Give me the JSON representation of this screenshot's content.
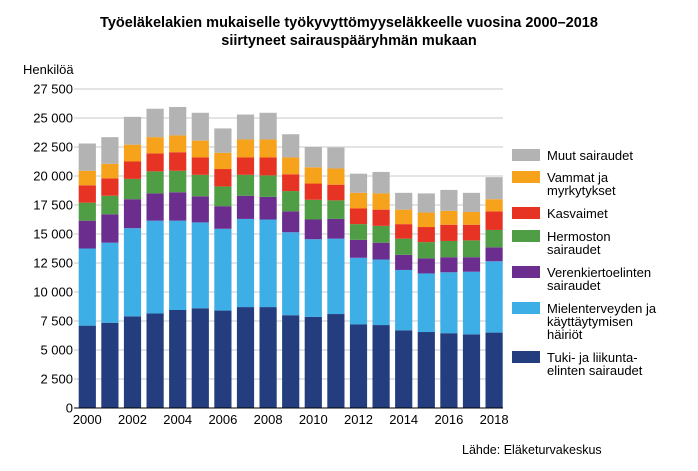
{
  "chart_data": {
    "type": "bar",
    "stacked": true,
    "title": [
      "Työeläkelakien mukaiselle työkyvyttömyyseläkkeelle vuosina 2000–2018",
      "siirtyneet sairauspääryhmän mukaan"
    ],
    "ylabel": "Henkilöä",
    "xlabel": "",
    "ylim": [
      0,
      27500
    ],
    "yticks": [
      "0",
      "2 500",
      "5 000",
      "7 500",
      "10 000",
      "12 500",
      "15 000",
      "17 500",
      "20 000",
      "22 500",
      "25 000",
      "27 500"
    ],
    "xtick_labels": [
      "2000",
      "2002",
      "2004",
      "2006",
      "2008",
      "2010",
      "2012",
      "2014",
      "2016",
      "2018"
    ],
    "grid": true,
    "legend_position": "right",
    "categories": [
      "2000",
      "2001",
      "2002",
      "2003",
      "2004",
      "2005",
      "2006",
      "2007",
      "2008",
      "2009",
      "2010",
      "2011",
      "2012",
      "2013",
      "2014",
      "2015",
      "2016",
      "2017",
      "2018"
    ],
    "series": [
      {
        "name": "Tuki- ja liikunta-elinten sairaudet",
        "color": "#243d7e",
        "values": [
          7100,
          7350,
          7900,
          8150,
          8450,
          8600,
          8400,
          8700,
          8700,
          8000,
          7850,
          8100,
          7200,
          7150,
          6700,
          6550,
          6450,
          6350,
          6500
        ]
      },
      {
        "name": "Mielenterveyden ja käyttäytymisen häiriöt",
        "color": "#3eaee6",
        "values": [
          6650,
          6900,
          7600,
          8000,
          7700,
          7400,
          7050,
          7600,
          7550,
          7150,
          6700,
          6500,
          5750,
          5650,
          5200,
          5050,
          5250,
          5400,
          6150
        ]
      },
      {
        "name": "Verenkiertoelinten sairaudet",
        "color": "#6b2d8e",
        "values": [
          2400,
          2450,
          2500,
          2350,
          2450,
          2250,
          1950,
          2000,
          1950,
          1800,
          1700,
          1700,
          1550,
          1450,
          1300,
          1300,
          1300,
          1250,
          1200
        ]
      },
      {
        "name": "Hermoston sairaudet",
        "color": "#4f9e45",
        "values": [
          1550,
          1600,
          1750,
          1900,
          1850,
          1850,
          1700,
          1800,
          1850,
          1750,
          1700,
          1600,
          1350,
          1450,
          1400,
          1400,
          1400,
          1450,
          1500
        ]
      },
      {
        "name": "Kasvaimet",
        "color": "#e63323",
        "values": [
          1500,
          1500,
          1500,
          1550,
          1600,
          1500,
          1500,
          1500,
          1550,
          1450,
          1400,
          1350,
          1350,
          1400,
          1250,
          1300,
          1400,
          1350,
          1600
        ]
      },
      {
        "name": "Vammat ja myrkytykset",
        "color": "#f7a21b",
        "values": [
          1250,
          1250,
          1450,
          1400,
          1450,
          1450,
          1400,
          1550,
          1550,
          1450,
          1400,
          1400,
          1350,
          1400,
          1250,
          1250,
          1200,
          1100,
          1050
        ]
      },
      {
        "name": "Muut sairaudet",
        "color": "#b3b3b3",
        "values": [
          2350,
          2300,
          2400,
          2450,
          2450,
          2400,
          2100,
          2150,
          2300,
          2000,
          1750,
          1800,
          1650,
          1850,
          1450,
          1650,
          1800,
          1650,
          1900
        ]
      }
    ]
  },
  "legend_labels": [
    [
      "Muut sairaudet"
    ],
    [
      "Vammat ja",
      "myrkytykset"
    ],
    [
      "Kasvaimet"
    ],
    [
      "Hermoston",
      "sairaudet"
    ],
    [
      "Verenkiertoelinten",
      "sairaudet"
    ],
    [
      "Mielenterveyden ja",
      "käyttäytymisen",
      "häiriöt"
    ],
    [
      "Tuki- ja liikunta-",
      "elinten sairaudet"
    ]
  ],
  "source": "Lähde: Eläketurvakeskus"
}
